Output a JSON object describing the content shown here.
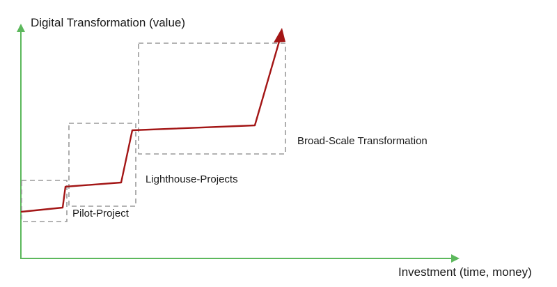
{
  "y_axis": {
    "title": "Digital Transformation (value)"
  },
  "x_axis": {
    "title": "Investment (time, money)"
  },
  "phases": [
    {
      "label": "Pilot-Project"
    },
    {
      "label": "Lighthouse-Projects"
    },
    {
      "label": "Broad-Scale Transformation"
    }
  ],
  "colors": {
    "axis": "#5cb85c",
    "curve": "#a31515",
    "phase_box": "#9a9a9a",
    "text": "#1a1a1a"
  }
}
